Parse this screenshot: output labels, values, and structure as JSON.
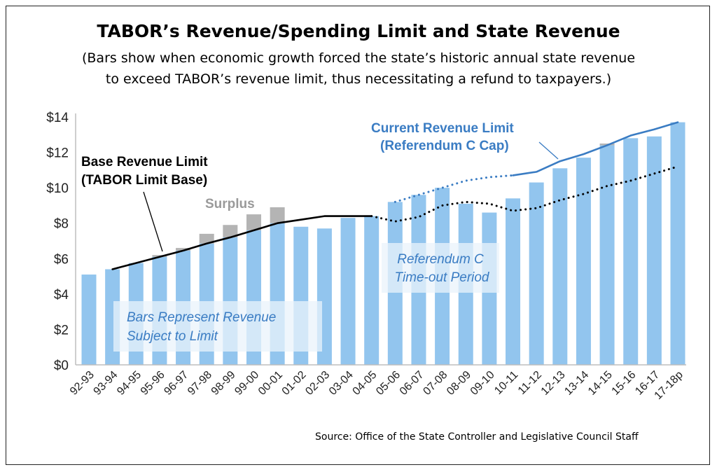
{
  "chart_data": {
    "type": "bar",
    "title": "TABOR’s Revenue/Spending Limit and State Revenue",
    "subtitle_lines": [
      "(Bars show when economic growth forced the state’s historic annual state revenue",
      "to exceed TABOR’s revenue limit, thus necessitating a refund to taxpayers.)"
    ],
    "categories": [
      "92-93",
      "93-94",
      "94-95",
      "95-96",
      "96-97",
      "97-98",
      "98-99",
      "99-00",
      "00-01",
      "01-02",
      "02-03",
      "03-04",
      "04-05",
      "05-06",
      "06-07",
      "07-08",
      "08-09",
      "09-10",
      "10-11",
      "11-12",
      "12-13",
      "13-14",
      "14-15",
      "15-16",
      "16-17",
      "17-18p"
    ],
    "ylim": [
      0,
      14
    ],
    "yticks": [
      0,
      2,
      4,
      6,
      8,
      10,
      12,
      14
    ],
    "ytick_labels": [
      "$0",
      "$2",
      "$4",
      "$6",
      "$8",
      "$10",
      "$12",
      "$14"
    ],
    "grid": false,
    "series": [
      {
        "key": "revenue",
        "values": [
          5.1,
          5.4,
          5.8,
          6.2,
          6.6,
          7.4,
          7.9,
          8.5,
          8.9,
          7.8,
          7.7,
          8.3,
          8.4,
          9.2,
          9.6,
          10.0,
          9.1,
          8.6,
          9.4,
          10.3,
          11.1,
          11.7,
          12.5,
          12.8,
          12.9,
          13.7
        ],
        "color": "#92c5ee"
      },
      {
        "key": "base_limit_solid",
        "values": [
          null,
          5.4,
          5.75,
          6.1,
          6.45,
          6.85,
          7.2,
          7.6,
          8.0,
          8.2,
          8.4,
          8.4,
          8.4,
          null,
          null,
          null,
          null,
          null,
          null,
          null,
          null,
          null,
          null,
          null,
          null,
          null
        ],
        "color": "#000000",
        "style": "solid"
      },
      {
        "key": "base_limit_dotted",
        "values": [
          null,
          null,
          null,
          null,
          null,
          null,
          null,
          null,
          null,
          null,
          null,
          null,
          8.4,
          8.1,
          8.35,
          9.0,
          9.2,
          9.1,
          8.7,
          8.85,
          9.3,
          9.65,
          10.1,
          10.4,
          10.8,
          11.2
        ],
        "color": "#000000",
        "style": "dotted"
      },
      {
        "key": "refc_cap_dotted",
        "values": [
          null,
          null,
          null,
          null,
          null,
          null,
          null,
          null,
          null,
          null,
          null,
          null,
          null,
          9.2,
          9.6,
          10.0,
          10.4,
          10.6,
          10.7,
          null,
          null,
          null,
          null,
          null,
          null,
          null
        ],
        "color": "#3a7cc3",
        "style": "dotted"
      },
      {
        "key": "refc_cap_solid",
        "values": [
          null,
          null,
          null,
          null,
          null,
          null,
          null,
          null,
          null,
          null,
          null,
          null,
          null,
          null,
          null,
          null,
          null,
          null,
          10.7,
          10.9,
          11.5,
          11.9,
          12.4,
          12.95,
          13.3,
          13.7
        ],
        "color": "#3a7cc3",
        "style": "solid"
      }
    ],
    "surplus_color": "#b4b4b4",
    "annotations": {
      "base_limit": [
        "Base Revenue Limit",
        "(TABOR Limit Base)"
      ],
      "current_limit": [
        "Current Revenue Limit",
        "(Referendum C Cap)"
      ],
      "surplus": "Surplus",
      "bars_note": [
        "Bars Represent Revenue",
        "Subject to Limit"
      ],
      "timeout_note": [
        "Referendum C",
        "Time-out Period"
      ]
    },
    "source": "Source:  Office of the State Controller and Legislative Council Staff"
  }
}
